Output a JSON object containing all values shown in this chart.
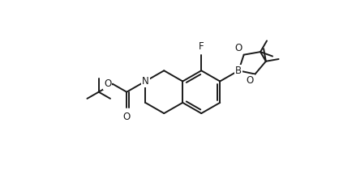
{
  "bg_color": "#ffffff",
  "line_color": "#1a1a1a",
  "line_width": 1.4,
  "font_size": 8.5,
  "fig_width": 4.18,
  "fig_height": 2.2,
  "dpi": 100,
  "xlim": [
    0,
    10
  ],
  "ylim": [
    0,
    5.26
  ]
}
